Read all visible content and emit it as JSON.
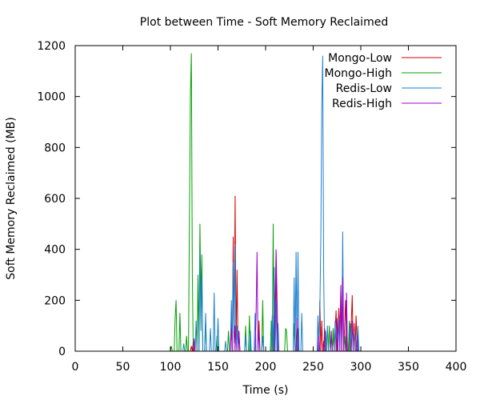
{
  "chart_data": {
    "type": "line",
    "title": "Plot between Time - Soft Memory Reclaimed",
    "xlabel": "Time (s)",
    "ylabel": "Soft Memory Reclaimed (MB)",
    "xlim": [
      0,
      400
    ],
    "ylim": [
      0,
      1200
    ],
    "xticks": [
      0,
      50,
      100,
      150,
      200,
      250,
      300,
      350,
      400
    ],
    "yticks": [
      0,
      200,
      400,
      600,
      800,
      1000,
      1200
    ],
    "grid": false,
    "legend_position": "top-right",
    "series": [
      {
        "name": "Mongo-Low",
        "color": "#d40000",
        "points": [
          [
            121,
            0
          ],
          [
            122,
            20
          ],
          [
            123,
            0
          ],
          [
            124,
            40
          ],
          [
            125,
            0
          ],
          [
            163,
            0
          ],
          [
            164,
            140
          ],
          [
            165,
            0
          ],
          [
            166,
            450
          ],
          [
            167,
            30
          ],
          [
            168,
            610
          ],
          [
            169,
            0
          ],
          [
            170,
            320
          ],
          [
            171,
            0
          ],
          [
            172,
            60
          ],
          [
            173,
            0
          ],
          [
            192,
            0
          ],
          [
            193,
            120
          ],
          [
            194,
            0
          ],
          [
            208,
            0
          ],
          [
            209,
            140
          ],
          [
            210,
            0
          ],
          [
            211,
            390
          ],
          [
            212,
            0
          ],
          [
            232,
            0
          ],
          [
            233,
            110
          ],
          [
            234,
            0
          ],
          [
            256,
            0
          ],
          [
            257,
            200
          ],
          [
            258,
            0
          ],
          [
            259,
            120
          ],
          [
            260,
            0
          ],
          [
            261,
            40
          ],
          [
            262,
            0
          ],
          [
            270,
            0
          ],
          [
            271,
            90
          ],
          [
            272,
            0
          ],
          [
            274,
            160
          ],
          [
            275,
            0
          ],
          [
            277,
            170
          ],
          [
            278,
            60
          ],
          [
            279,
            240
          ],
          [
            280,
            0
          ],
          [
            281,
            290
          ],
          [
            282,
            0
          ],
          [
            284,
            200
          ],
          [
            285,
            0
          ],
          [
            287,
            0
          ],
          [
            288,
            80
          ],
          [
            289,
            0
          ],
          [
            291,
            220
          ],
          [
            292,
            0
          ],
          [
            293,
            110
          ],
          [
            294,
            0
          ],
          [
            295,
            140
          ],
          [
            296,
            40
          ],
          [
            297,
            0
          ]
        ]
      },
      {
        "name": "Mongo-High",
        "color": "#00a000",
        "points": [
          [
            100,
            0
          ],
          [
            101,
            20
          ],
          [
            102,
            0
          ],
          [
            104,
            0
          ],
          [
            105,
            130
          ],
          [
            106,
            200
          ],
          [
            107,
            0
          ],
          [
            109,
            0
          ],
          [
            110,
            150
          ],
          [
            111,
            0
          ],
          [
            116,
            0
          ],
          [
            117,
            60
          ],
          [
            118,
            0
          ],
          [
            119,
            0
          ],
          [
            120,
            520
          ],
          [
            121,
            1000
          ],
          [
            122,
            1170
          ],
          [
            123,
            300
          ],
          [
            124,
            0
          ],
          [
            128,
            0
          ],
          [
            129,
            300
          ],
          [
            130,
            0
          ],
          [
            131,
            500
          ],
          [
            132,
            200
          ],
          [
            133,
            380
          ],
          [
            134,
            0
          ],
          [
            136,
            0
          ],
          [
            137,
            120
          ],
          [
            138,
            0
          ],
          [
            148,
            0
          ],
          [
            149,
            60
          ],
          [
            150,
            0
          ],
          [
            160,
            0
          ],
          [
            161,
            80
          ],
          [
            162,
            0
          ],
          [
            178,
            0
          ],
          [
            179,
            100
          ],
          [
            180,
            0
          ],
          [
            182,
            0
          ],
          [
            183,
            140
          ],
          [
            184,
            0
          ],
          [
            196,
            0
          ],
          [
            197,
            200
          ],
          [
            198,
            0
          ],
          [
            205,
            0
          ],
          [
            206,
            120
          ],
          [
            207,
            0
          ],
          [
            208,
            500
          ],
          [
            209,
            0
          ],
          [
            220,
            0
          ],
          [
            221,
            90
          ],
          [
            222,
            80
          ],
          [
            223,
            0
          ],
          [
            229,
            0
          ],
          [
            230,
            110
          ],
          [
            231,
            0
          ],
          [
            233,
            0
          ],
          [
            234,
            90
          ],
          [
            235,
            0
          ],
          [
            262,
            0
          ],
          [
            263,
            80
          ],
          [
            264,
            0
          ],
          [
            266,
            0
          ],
          [
            267,
            100
          ],
          [
            268,
            0
          ],
          [
            270,
            0
          ],
          [
            271,
            90
          ],
          [
            272,
            0
          ],
          [
            282,
            0
          ],
          [
            283,
            60
          ],
          [
            284,
            0
          ],
          [
            287,
            0
          ],
          [
            288,
            120
          ],
          [
            289,
            0
          ],
          [
            296,
            0
          ],
          [
            297,
            60
          ],
          [
            298,
            0
          ]
        ]
      },
      {
        "name": "Redis-Low",
        "color": "#1e7fd0",
        "points": [
          [
            113,
            0
          ],
          [
            114,
            30
          ],
          [
            115,
            0
          ],
          [
            126,
            0
          ],
          [
            127,
            120
          ],
          [
            128,
            0
          ],
          [
            130,
            0
          ],
          [
            131,
            395
          ],
          [
            132,
            80
          ],
          [
            133,
            300
          ],
          [
            134,
            0
          ],
          [
            136,
            0
          ],
          [
            137,
            150
          ],
          [
            138,
            0
          ],
          [
            141,
            0
          ],
          [
            142,
            90
          ],
          [
            143,
            0
          ],
          [
            145,
            0
          ],
          [
            146,
            230
          ],
          [
            147,
            0
          ],
          [
            149,
            0
          ],
          [
            150,
            130
          ],
          [
            151,
            0
          ],
          [
            157,
            0
          ],
          [
            158,
            40
          ],
          [
            159,
            0
          ],
          [
            163,
            0
          ],
          [
            164,
            200
          ],
          [
            165,
            0
          ],
          [
            166,
            350
          ],
          [
            167,
            80
          ],
          [
            168,
            420
          ],
          [
            169,
            0
          ],
          [
            170,
            100
          ],
          [
            171,
            0
          ],
          [
            172,
            80
          ],
          [
            173,
            0
          ],
          [
            178,
            0
          ],
          [
            179,
            60
          ],
          [
            180,
            0
          ],
          [
            183,
            0
          ],
          [
            184,
            80
          ],
          [
            185,
            0
          ],
          [
            188,
            0
          ],
          [
            189,
            150
          ],
          [
            190,
            0
          ],
          [
            196,
            0
          ],
          [
            197,
            60
          ],
          [
            198,
            0
          ],
          [
            206,
            0
          ],
          [
            207,
            140
          ],
          [
            208,
            0
          ],
          [
            209,
            330
          ],
          [
            210,
            0
          ],
          [
            211,
            200
          ],
          [
            212,
            0
          ],
          [
            213,
            110
          ],
          [
            214,
            0
          ],
          [
            229,
            0
          ],
          [
            230,
            290
          ],
          [
            231,
            0
          ],
          [
            232,
            390
          ],
          [
            233,
            0
          ],
          [
            234,
            390
          ],
          [
            235,
            0
          ],
          [
            237,
            0
          ],
          [
            238,
            150
          ],
          [
            239,
            0
          ],
          [
            254,
            0
          ],
          [
            255,
            140
          ],
          [
            256,
            0
          ],
          [
            257,
            160
          ],
          [
            258,
            430
          ],
          [
            259,
            960
          ],
          [
            260,
            1160
          ],
          [
            261,
            300
          ],
          [
            262,
            0
          ],
          [
            264,
            0
          ],
          [
            265,
            100
          ],
          [
            266,
            0
          ],
          [
            268,
            0
          ],
          [
            269,
            60
          ],
          [
            270,
            0
          ],
          [
            272,
            0
          ],
          [
            273,
            120
          ],
          [
            274,
            0
          ],
          [
            276,
            0
          ],
          [
            277,
            130
          ],
          [
            278,
            0
          ],
          [
            280,
            0
          ],
          [
            281,
            470
          ],
          [
            282,
            0
          ],
          [
            284,
            0
          ],
          [
            285,
            200
          ],
          [
            286,
            0
          ],
          [
            288,
            0
          ],
          [
            289,
            110
          ],
          [
            290,
            0
          ],
          [
            292,
            0
          ],
          [
            293,
            80
          ],
          [
            294,
            0
          ],
          [
            296,
            0
          ],
          [
            297,
            100
          ],
          [
            298,
            0
          ]
        ]
      },
      {
        "name": "Redis-High",
        "color": "#a000c8",
        "points": [
          [
            124,
            0
          ],
          [
            125,
            50
          ],
          [
            126,
            0
          ],
          [
            163,
            0
          ],
          [
            164,
            90
          ],
          [
            165,
            0
          ],
          [
            167,
            0
          ],
          [
            168,
            100
          ],
          [
            169,
            0
          ],
          [
            171,
            0
          ],
          [
            172,
            80
          ],
          [
            173,
            0
          ],
          [
            189,
            0
          ],
          [
            190,
            150
          ],
          [
            191,
            390
          ],
          [
            192,
            0
          ],
          [
            193,
            80
          ],
          [
            194,
            0
          ],
          [
            209,
            0
          ],
          [
            210,
            190
          ],
          [
            211,
            400
          ],
          [
            212,
            210
          ],
          [
            213,
            0
          ],
          [
            232,
            0
          ],
          [
            233,
            130
          ],
          [
            234,
            0
          ],
          [
            255,
            0
          ],
          [
            256,
            60
          ],
          [
            257,
            0
          ],
          [
            261,
            0
          ],
          [
            262,
            90
          ],
          [
            263,
            0
          ],
          [
            268,
            0
          ],
          [
            269,
            80
          ],
          [
            270,
            0
          ],
          [
            274,
            0
          ],
          [
            275,
            130
          ],
          [
            276,
            0
          ],
          [
            278,
            0
          ],
          [
            279,
            260
          ],
          [
            280,
            0
          ],
          [
            281,
            290
          ],
          [
            282,
            0
          ],
          [
            284,
            0
          ],
          [
            285,
            230
          ],
          [
            286,
            0
          ],
          [
            290,
            0
          ],
          [
            291,
            120
          ],
          [
            292,
            0
          ],
          [
            295,
            0
          ],
          [
            296,
            60
          ],
          [
            297,
            0
          ]
        ]
      }
    ]
  }
}
